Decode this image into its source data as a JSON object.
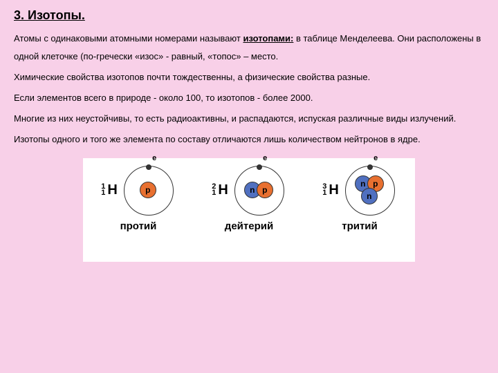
{
  "heading": "3. Изотопы.",
  "p1a": "Атомы с одинаковыми атомными номерами называют ",
  "p1b": "изотопами:",
  "p1c": " в таблице Менделеева. Они расположены в одной клеточке (по-гречески «изос» - равный, «топос» – место.",
  "p2": "Химические свойства изотопов почти тождественны, а физические свойства разные.",
  "p3": " Если элементов всего в природе - около 100, то изотопов - более 2000.",
  "p4": "Многие из них неустойчивы, то есть радиоактивны, и распадаются, испуская различные виды излучений.",
  "p5": "Изотопы одного и того же элемента по составу отличаются лишь количеством нейтронов в ядре.",
  "isotopes": [
    {
      "mass": "1",
      "z": "1",
      "symbol": "H",
      "label": "протий",
      "nucleons": [
        {
          "t": "p",
          "c": "proton"
        }
      ]
    },
    {
      "mass": "2",
      "z": "1",
      "symbol": "H",
      "label": "дейтерий",
      "nucleons": [
        {
          "t": "n",
          "c": "neutron"
        },
        {
          "t": "p",
          "c": "proton"
        }
      ]
    },
    {
      "mass": "3",
      "z": "1",
      "symbol": "H",
      "label": "тритий",
      "nucleons": [
        {
          "t": "n",
          "c": "neutron"
        },
        {
          "t": "p",
          "c": "proton"
        },
        {
          "t": "n",
          "c": "neutron"
        }
      ]
    }
  ],
  "electron_label": "e",
  "colors": {
    "page_bg": "#f8d0e8",
    "diagram_bg": "#ffffff",
    "proton": "#e87030",
    "neutron": "#5070c0",
    "orbit": "#333333"
  }
}
